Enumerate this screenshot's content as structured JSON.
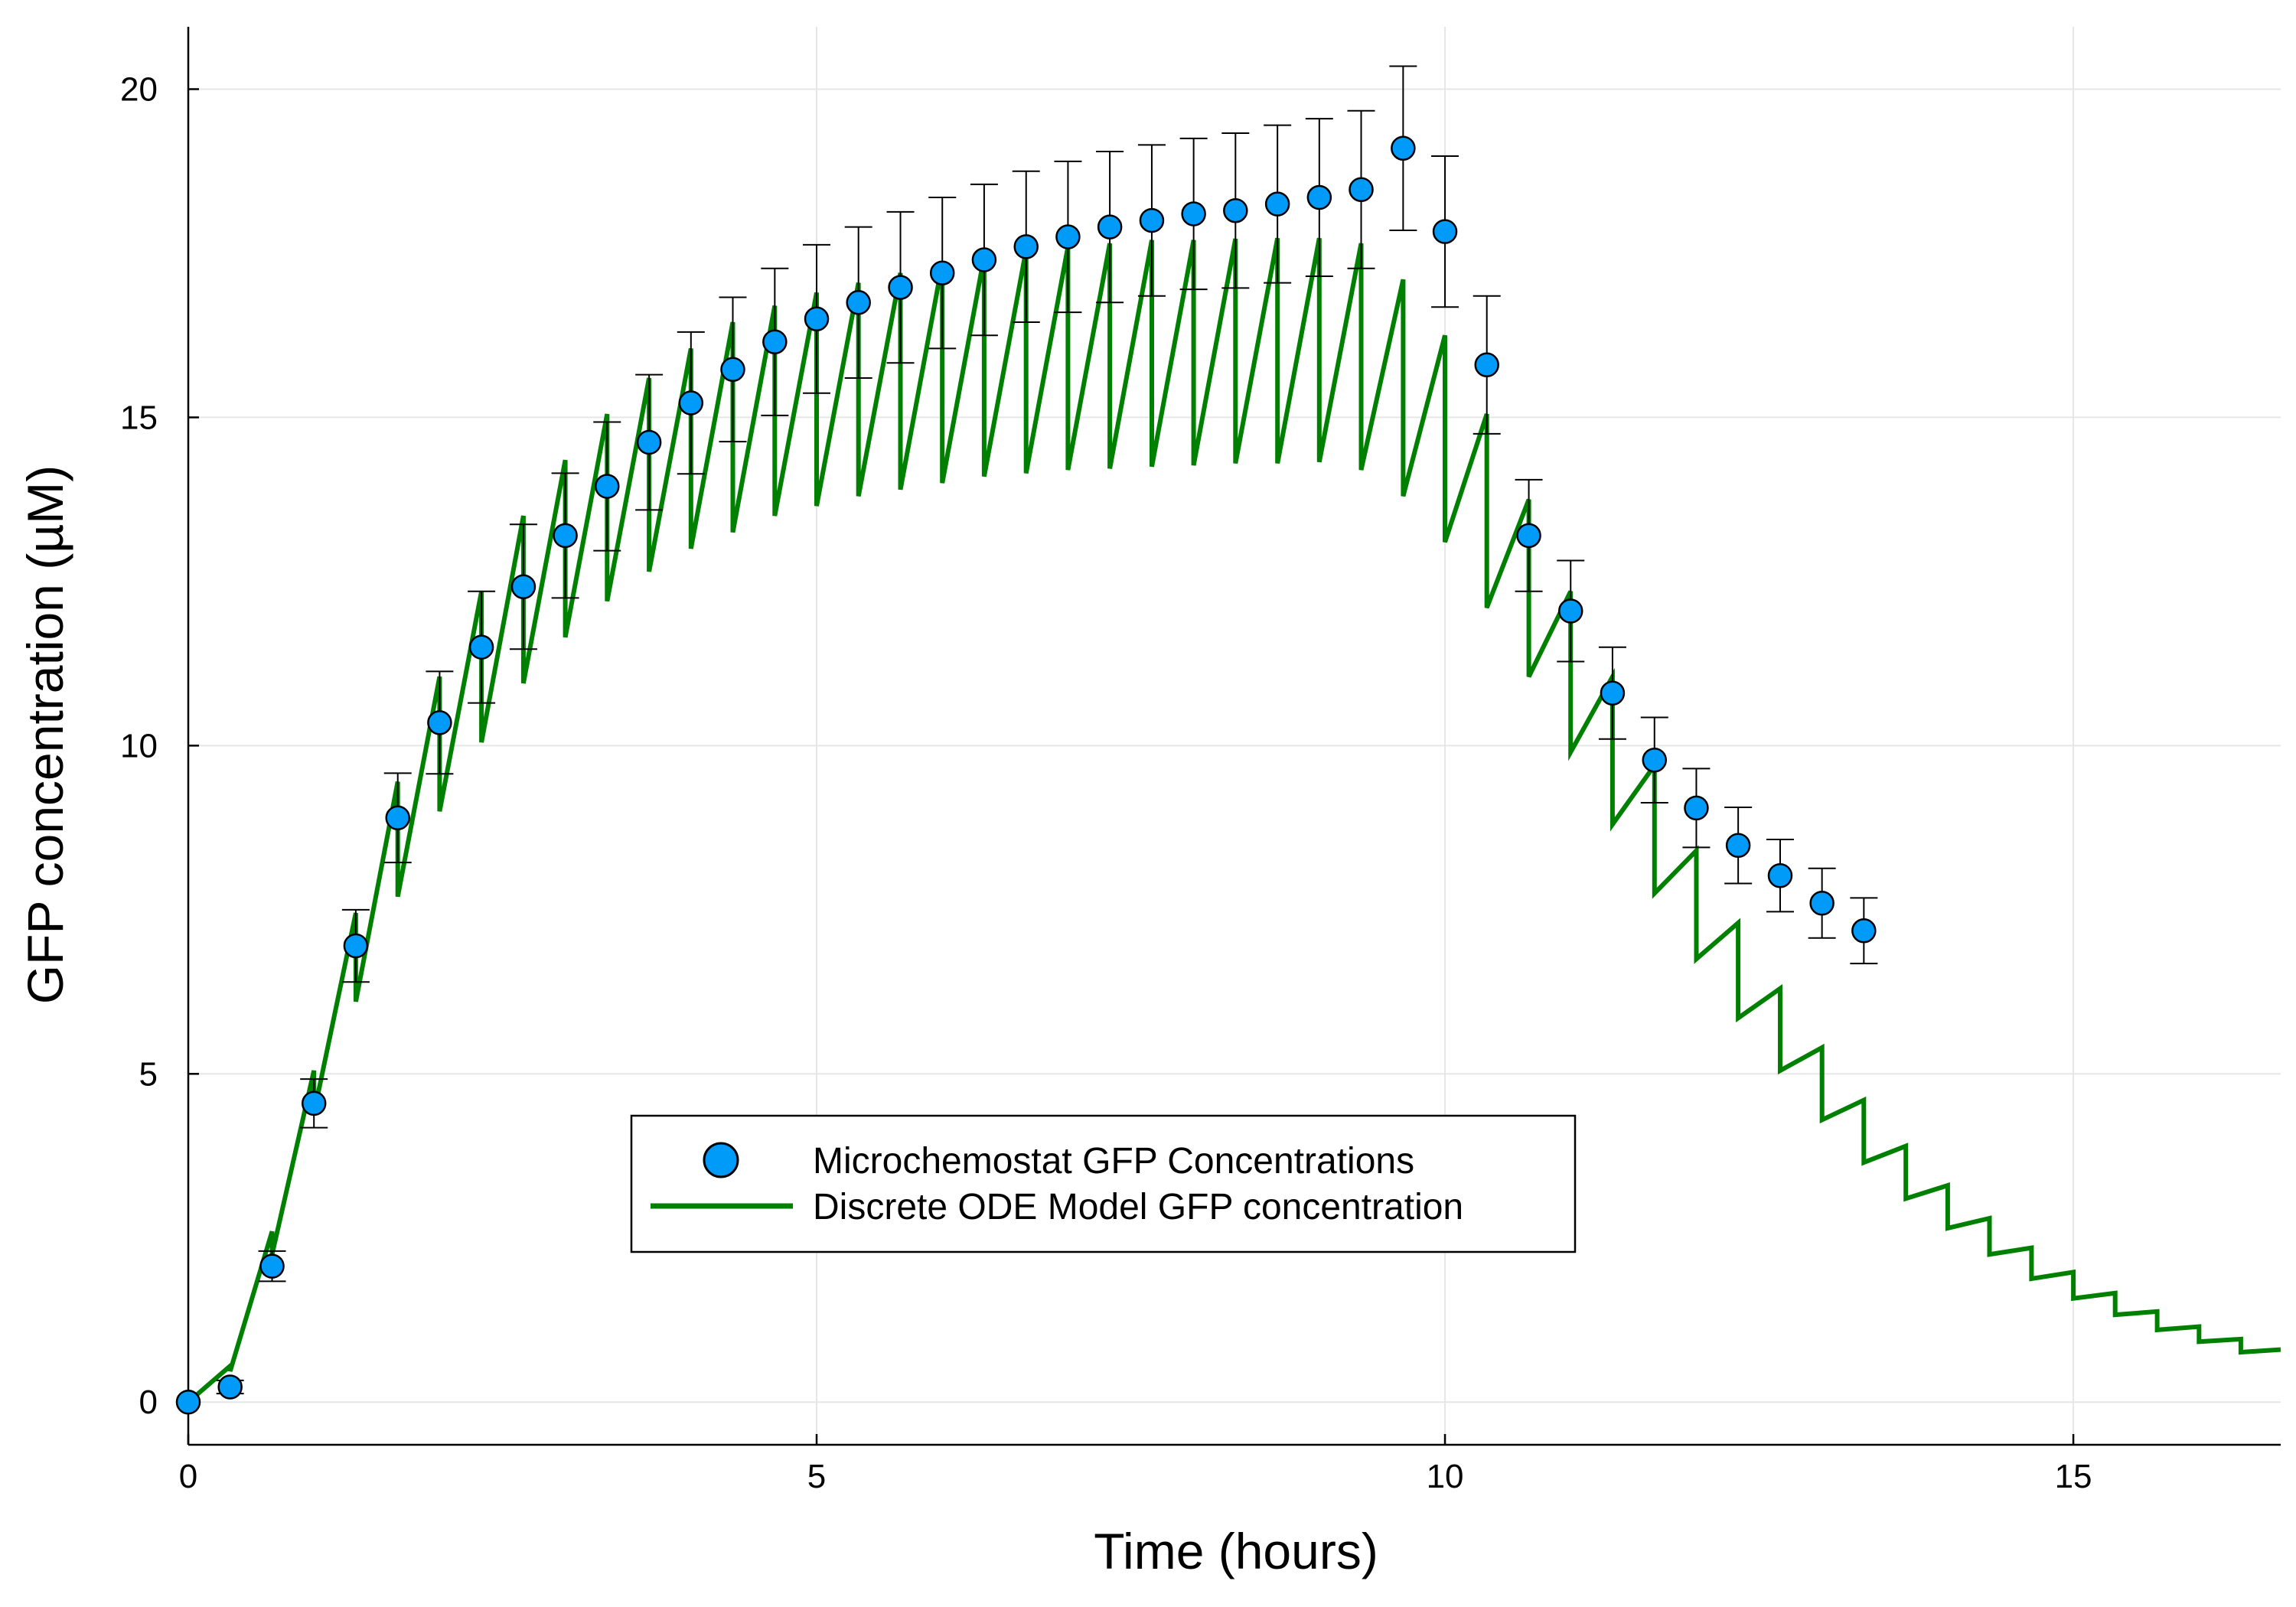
{
  "chart_data": {
    "type": "scatter",
    "xlabel": "Time (hours)",
    "ylabel": "GFP concentration (µM)",
    "xlim": [
      0,
      16.65
    ],
    "ylim": [
      -0.65,
      20.95
    ],
    "xticks": [
      0,
      5,
      10,
      15
    ],
    "yticks": [
      0,
      5,
      10,
      15,
      20
    ],
    "grid": true,
    "legend_position": "center-bottom",
    "colors": {
      "markers": "#009af9",
      "model_line": "#008000",
      "error_bars": "#000000"
    },
    "series": [
      {
        "name": "Microchemostat GFP Concentrations",
        "kind": "scatter_with_error_bars",
        "x": [
          0,
          0.333,
          0.667,
          1.0,
          1.333,
          1.667,
          2.0,
          2.333,
          2.667,
          3.0,
          3.333,
          3.667,
          4.0,
          4.333,
          4.667,
          5.0,
          5.333,
          5.667,
          6.0,
          6.333,
          6.667,
          7.0,
          7.333,
          7.667,
          8.0,
          8.333,
          8.667,
          9.0,
          9.333,
          9.667,
          10.0,
          10.333,
          10.667,
          11.0,
          11.333,
          11.667,
          12.0,
          12.333,
          12.667,
          13.0,
          13.333
        ],
        "y": [
          0.0,
          0.23,
          2.07,
          4.55,
          6.95,
          8.9,
          10.35,
          11.5,
          12.42,
          13.2,
          13.95,
          14.62,
          15.22,
          15.73,
          16.15,
          16.5,
          16.75,
          16.98,
          17.2,
          17.4,
          17.6,
          17.75,
          17.9,
          18.0,
          18.1,
          18.15,
          18.25,
          18.35,
          18.47,
          19.1,
          17.83,
          15.8,
          13.2,
          12.05,
          10.8,
          9.78,
          9.05,
          8.48,
          8.02,
          7.6,
          7.18
        ],
        "error": [
          0.0,
          0.1,
          0.23,
          0.37,
          0.55,
          0.68,
          0.78,
          0.85,
          0.95,
          0.95,
          0.98,
          1.03,
          1.08,
          1.1,
          1.12,
          1.13,
          1.15,
          1.15,
          1.15,
          1.15,
          1.15,
          1.15,
          1.15,
          1.15,
          1.15,
          1.18,
          1.2,
          1.2,
          1.2,
          1.25,
          1.15,
          1.05,
          0.85,
          0.77,
          0.7,
          0.65,
          0.6,
          0.58,
          0.55,
          0.53,
          0.5
        ]
      },
      {
        "name": "Discrete ODE Model GFP concentration",
        "kind": "line",
        "x": [
          0,
          0.333,
          0.333,
          0.667,
          0.667,
          1.0,
          1.0,
          1.333,
          1.333,
          1.667,
          1.667,
          2.0,
          2.0,
          2.333,
          2.333,
          2.667,
          2.667,
          3.0,
          3.0,
          3.333,
          3.333,
          3.667,
          3.667,
          4.0,
          4.0,
          4.333,
          4.333,
          4.667,
          4.667,
          5.0,
          5.0,
          5.333,
          5.333,
          5.667,
          5.667,
          6.0,
          6.0,
          6.333,
          6.333,
          6.667,
          6.667,
          7.0,
          7.0,
          7.333,
          7.333,
          7.667,
          7.667,
          8.0,
          8.0,
          8.333,
          8.333,
          8.667,
          8.667,
          9.0,
          9.0,
          9.333,
          9.333,
          9.667,
          9.667,
          10.0,
          10.0,
          10.333,
          10.333,
          10.667,
          10.667,
          11.0,
          11.0,
          11.333,
          11.333,
          11.667,
          11.667,
          12.0,
          12.0,
          12.333,
          12.333,
          12.667,
          12.667,
          13.0,
          13.0,
          13.333,
          13.333,
          13.667,
          13.667,
          14.0,
          14.0,
          14.333,
          14.333,
          14.667,
          14.667,
          15.0,
          15.0,
          15.333,
          15.333,
          15.667,
          15.667,
          16.0,
          16.0,
          16.333,
          16.333,
          16.65
        ],
        "y": [
          0.0,
          0.55,
          0.47,
          2.6,
          2.25,
          5.05,
          4.4,
          7.45,
          6.1,
          9.45,
          7.7,
          11.05,
          9.0,
          12.35,
          10.05,
          13.5,
          10.95,
          14.35,
          11.65,
          15.05,
          12.2,
          15.6,
          12.65,
          16.05,
          13.0,
          16.45,
          13.25,
          16.7,
          13.5,
          16.9,
          13.65,
          17.05,
          13.8,
          17.2,
          13.9,
          17.35,
          14.0,
          17.45,
          14.1,
          17.55,
          14.15,
          17.6,
          14.2,
          17.65,
          14.22,
          17.7,
          14.25,
          17.7,
          14.27,
          17.72,
          14.3,
          17.73,
          14.3,
          17.73,
          14.32,
          17.65,
          14.2,
          17.1,
          13.8,
          16.25,
          13.1,
          15.05,
          12.1,
          13.75,
          11.05,
          12.35,
          9.9,
          11.05,
          8.8,
          9.7,
          7.75,
          8.4,
          6.75,
          7.3,
          5.85,
          6.3,
          5.05,
          5.4,
          4.3,
          4.6,
          3.65,
          3.9,
          3.1,
          3.3,
          2.65,
          2.8,
          2.25,
          2.35,
          1.88,
          1.98,
          1.58,
          1.66,
          1.33,
          1.38,
          1.1,
          1.15,
          0.92,
          0.96,
          0.76,
          0.8
        ]
      }
    ]
  }
}
